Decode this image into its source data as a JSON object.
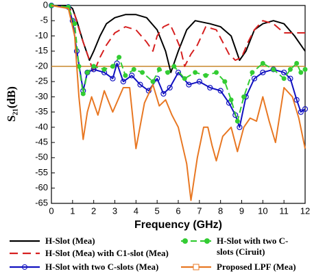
{
  "chart_data": {
    "type": "line",
    "x_label": "Frequency (GHz)",
    "y_label": "S₂₁(dB)",
    "xlim": [
      0,
      12
    ],
    "xticks": [
      0,
      1,
      2,
      3,
      4,
      5,
      6,
      7,
      8,
      9,
      10,
      11,
      12
    ],
    "ylim": [
      -65,
      0
    ],
    "yticks": [
      0,
      -5,
      -10,
      -15,
      -20,
      -25,
      -30,
      -35,
      -40,
      -45,
      -50,
      -55,
      -60,
      -65
    ],
    "reference_line": {
      "value": -20,
      "color": "#c8862a"
    },
    "series": [
      {
        "name": "H-Slot (Mea)",
        "color": "#000000",
        "dash": "none",
        "marker": "none",
        "x": [
          0,
          0.8,
          1.0,
          1.2,
          1.5,
          1.8,
          2.0,
          2.3,
          2.6,
          3.0,
          3.5,
          4.0,
          4.5,
          5.0,
          5.4,
          5.65,
          6.0,
          6.4,
          6.8,
          7.5,
          8.0,
          8.5,
          8.9,
          9.2,
          9.6,
          10,
          10.5,
          11,
          11.5,
          12
        ],
        "values": [
          0,
          0,
          -1,
          -5,
          -12,
          -18,
          -15,
          -10,
          -6,
          -4,
          -3,
          -3,
          -4,
          -8,
          -15,
          -22,
          -15,
          -8,
          -5,
          -6,
          -7,
          -10,
          -18,
          -15,
          -8,
          -6,
          -5,
          -6,
          -10,
          -15
        ]
      },
      {
        "name": "H-Slot (Mea) with C1-slot (Mea)",
        "color": "#d62020",
        "dash": "12,7",
        "marker": "none",
        "x": [
          0,
          0.8,
          1.1,
          1.4,
          1.8,
          2.0,
          2.3,
          2.6,
          3.0,
          3.5,
          4.0,
          4.5,
          4.8,
          5.0,
          5.3,
          5.6,
          5.8,
          6.1,
          6.3,
          6.6,
          6.9,
          7.3,
          7.8,
          8.1,
          8.4,
          8.7,
          9.0,
          9.3,
          9.6,
          10,
          10.5,
          11,
          12
        ],
        "values": [
          0,
          -0.5,
          -3,
          -10,
          -18,
          -22,
          -17,
          -13,
          -9,
          -7,
          -8,
          -12,
          -15,
          -10,
          -7,
          -6,
          -9,
          -14,
          -20,
          -16,
          -13,
          -7,
          -8,
          -12,
          -16,
          -18,
          -17,
          -12,
          -8,
          -5,
          -6,
          -9,
          -9
        ]
      },
      {
        "name": "H-Slot with two C-slots (Mea)",
        "color": "#1010c0",
        "dash": "none",
        "marker": "circle",
        "x": [
          0,
          0.8,
          1.0,
          1.2,
          1.5,
          1.7,
          2.0,
          2.5,
          2.9,
          3.1,
          3.4,
          3.8,
          4.2,
          4.6,
          5.0,
          5.3,
          5.6,
          6.0,
          6.5,
          7.0,
          7.5,
          8.0,
          8.4,
          8.7,
          8.9,
          9.2,
          9.6,
          10.0,
          10.5,
          11.0,
          11.3,
          11.6,
          11.8,
          12
        ],
        "values": [
          0,
          -0.5,
          -5,
          -15,
          -28,
          -22,
          -21,
          -22,
          -24,
          -19,
          -25,
          -23,
          -26,
          -28,
          -24,
          -29,
          -27,
          -22,
          -26,
          -25,
          -27,
          -28,
          -32,
          -36,
          -40,
          -30,
          -24,
          -22,
          -21,
          -22,
          -24,
          -31,
          -35,
          -34
        ]
      },
      {
        "name": "H-Slot with two C-slots (Ciruit)",
        "color": "#33cc33",
        "dash": "9,5",
        "marker": "dot",
        "x": [
          0,
          0.8,
          1.1,
          1.3,
          1.5,
          1.7,
          2.0,
          2.5,
          2.9,
          3.2,
          3.5,
          3.9,
          4.3,
          4.8,
          5.1,
          5.5,
          5.8,
          6.3,
          6.8,
          7.3,
          7.8,
          8.2,
          8.5,
          8.8,
          9.1,
          9.5,
          10.0,
          10.5,
          11,
          11.3,
          11.6,
          11.8,
          12
        ],
        "values": [
          0,
          -0.5,
          -6,
          -20,
          -29,
          -22,
          -20,
          -21,
          -20,
          -17,
          -23,
          -21,
          -22,
          -25,
          -21,
          -22,
          -20,
          -24,
          -22,
          -23,
          -22,
          -25,
          -31,
          -38,
          -30,
          -22,
          -19,
          -21,
          -24,
          -21,
          -19,
          -22,
          -21
        ]
      },
      {
        "name": "Proposed LPF (Mea)",
        "color": "#e87722",
        "dash": "none",
        "marker": "none",
        "x": [
          0,
          0.8,
          1.1,
          1.3,
          1.5,
          1.7,
          1.9,
          2.2,
          2.5,
          2.9,
          3.4,
          3.7,
          4.0,
          4.4,
          4.8,
          5.1,
          5.4,
          5.7,
          6.0,
          6.4,
          6.6,
          6.9,
          7.2,
          7.4,
          7.6,
          7.8,
          8.1,
          8.5,
          8.8,
          9.1,
          9.4,
          9.7,
          10.0,
          10.3,
          10.6,
          11.0,
          11.4,
          11.7,
          12
        ],
        "values": [
          0,
          -1,
          -10,
          -30,
          -44,
          -35,
          -30,
          -36,
          -28,
          -35,
          -27,
          -27,
          -47,
          -32,
          -26,
          -33,
          -31,
          -36,
          -40,
          -52,
          -64,
          -50,
          -40,
          -40,
          -46,
          -51,
          -43,
          -40,
          -48,
          -40,
          -37,
          -38,
          -30,
          -38,
          -45,
          -27,
          -30,
          -37,
          -47
        ]
      }
    ]
  }
}
